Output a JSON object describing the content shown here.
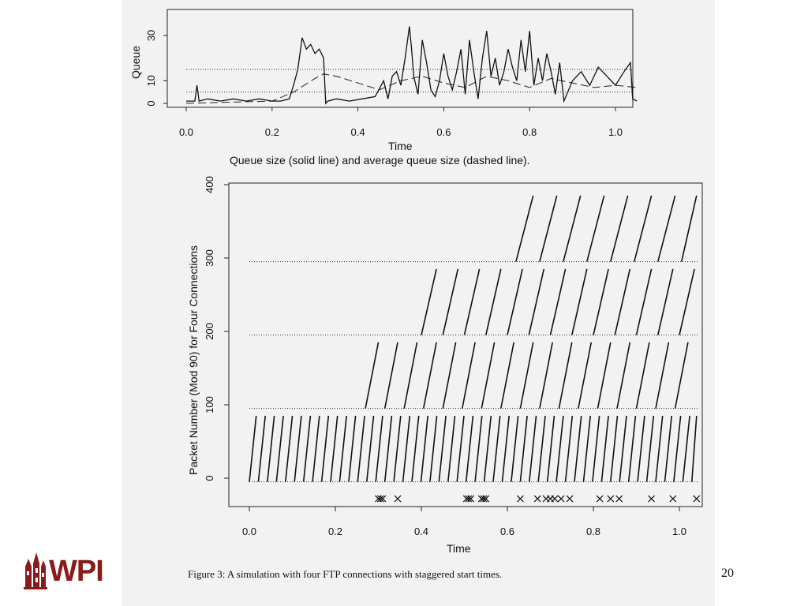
{
  "page_number": "20",
  "logo_text": "WPI",
  "figure_caption": "Figure 3: A simulation with four FTP connections with staggered start times.",
  "chart_data": [
    {
      "type": "line",
      "xlabel": "Time",
      "ylabel": "Queue",
      "caption": "Queue size (solid line) and average queue size (dashed line).",
      "xlim": [
        0,
        1.05
      ],
      "ylim": [
        0,
        38
      ],
      "xticks": [
        "0.0",
        "0.2",
        "0.4",
        "0.6",
        "0.8",
        "1.0"
      ],
      "yticks": [
        "0",
        "10",
        "30"
      ],
      "threshold_lines": [
        5,
        15
      ],
      "series": [
        {
          "style": "solid",
          "x": [
            0.0,
            0.02,
            0.025,
            0.03,
            0.05,
            0.08,
            0.11,
            0.14,
            0.17,
            0.2,
            0.22,
            0.24,
            0.25,
            0.26,
            0.27,
            0.28,
            0.29,
            0.3,
            0.31,
            0.32,
            0.325,
            0.33,
            0.35,
            0.38,
            0.41,
            0.44,
            0.46,
            0.47,
            0.48,
            0.49,
            0.5,
            0.51,
            0.52,
            0.525,
            0.53,
            0.54,
            0.55,
            0.56,
            0.57,
            0.58,
            0.59,
            0.6,
            0.61,
            0.62,
            0.63,
            0.64,
            0.65,
            0.66,
            0.67,
            0.68,
            0.69,
            0.7,
            0.71,
            0.72,
            0.73,
            0.74,
            0.75,
            0.76,
            0.77,
            0.78,
            0.79,
            0.8,
            0.81,
            0.82,
            0.83,
            0.84,
            0.85,
            0.86,
            0.87,
            0.88,
            0.9,
            0.92,
            0.94,
            0.96,
            0.98,
            1.0,
            1.02,
            1.035,
            1.04,
            1.05
          ],
          "values": [
            1,
            1,
            8,
            1,
            2,
            1,
            2,
            1,
            2,
            1,
            1,
            2,
            8,
            15,
            29,
            24,
            26,
            22,
            24,
            20,
            0,
            1,
            2,
            1,
            2,
            3,
            10,
            2,
            12,
            14,
            8,
            20,
            34,
            24,
            12,
            4,
            28,
            18,
            6,
            3,
            10,
            22,
            12,
            6,
            14,
            24,
            4,
            28,
            14,
            2,
            20,
            32,
            12,
            20,
            8,
            14,
            24,
            16,
            10,
            28,
            14,
            32,
            8,
            20,
            10,
            22,
            14,
            4,
            18,
            1,
            10,
            14,
            8,
            16,
            12,
            8,
            14,
            18,
            2,
            1
          ]
        },
        {
          "style": "dashed",
          "x": [
            0.0,
            0.2,
            0.25,
            0.3,
            0.32,
            0.35,
            0.4,
            0.45,
            0.5,
            0.55,
            0.6,
            0.65,
            0.7,
            0.75,
            0.8,
            0.85,
            0.9,
            0.95,
            1.0,
            1.05
          ],
          "values": [
            0,
            1,
            5,
            11,
            13,
            12,
            9,
            6,
            10,
            12,
            9,
            7,
            12,
            10,
            7,
            11,
            9,
            7,
            8,
            7
          ]
        }
      ]
    },
    {
      "type": "scatter",
      "xlabel": "Time",
      "ylabel": "Packet Number (Mod 90) for Four Connections",
      "xlim": [
        0,
        1.05
      ],
      "ylim": [
        -40,
        400
      ],
      "xticks": [
        "0.0",
        "0.2",
        "0.4",
        "0.6",
        "0.8",
        "1.0"
      ],
      "yticks": [
        "0",
        "100",
        "200",
        "300",
        "400"
      ],
      "connection_offsets": [
        -5,
        95,
        195,
        295
      ],
      "drop_marks_x": [
        0.3,
        0.305,
        0.31,
        0.345,
        0.505,
        0.51,
        0.515,
        0.54,
        0.545,
        0.55,
        0.63,
        0.67,
        0.69,
        0.7,
        0.71,
        0.725,
        0.745,
        0.815,
        0.84,
        0.86,
        0.935,
        0.985,
        1.04
      ],
      "drop_row_y": -28
    }
  ]
}
